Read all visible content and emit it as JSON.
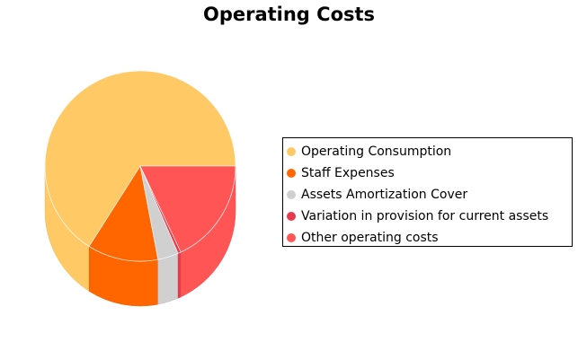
{
  "chart_data": {
    "type": "pie",
    "title": "Operating Costs",
    "style": "3d",
    "legend_position": "right",
    "slices": [
      {
        "label": "Operating Consumption",
        "value": 66,
        "color": "#ffc966"
      },
      {
        "label": "Staff Expenses",
        "value": 12,
        "color": "#ff6600"
      },
      {
        "label": "Assets Amortization Cover",
        "value": 3.5,
        "color": "#d0d0d0"
      },
      {
        "label": "Variation in provision for current assets",
        "value": 0.5,
        "color": "#e83a4f"
      },
      {
        "label": "Other operating costs",
        "value": 18,
        "color": "#ff5555"
      }
    ]
  }
}
